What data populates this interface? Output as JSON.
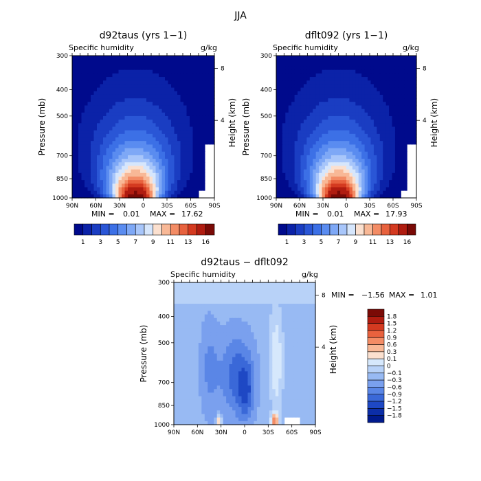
{
  "figure_title": "JJA",
  "chart_data": [
    {
      "type": "heatmap",
      "title": "d92taus (yrs 1−1)",
      "variable": "Specific humidity",
      "units": "g/kg",
      "ylabel": "Pressure (mb)",
      "ylabel_right": "Height (km)",
      "x_ticks": [
        "90N",
        "60N",
        "30N",
        "0",
        "30S",
        "60S",
        "90S"
      ],
      "y_ticks": [
        "300",
        "400",
        "500",
        "700",
        "850",
        "1000"
      ],
      "right_ticks": [
        "8",
        "4"
      ],
      "min_label": "MIN =",
      "min_value": "0.01",
      "max_label": "MAX =",
      "max_value": "17.62",
      "colorbar_labels": [
        "1",
        "3",
        "5",
        "7",
        "9",
        "11",
        "13",
        "16"
      ]
    },
    {
      "type": "heatmap",
      "title": "dflt092 (yrs 1−1)",
      "variable": "Specific humidity",
      "units": "g/kg",
      "ylabel": "Pressure (mb)",
      "ylabel_right": "Height (km)",
      "x_ticks": [
        "90N",
        "60N",
        "30N",
        "0",
        "30S",
        "60S",
        "90S"
      ],
      "y_ticks": [
        "300",
        "400",
        "500",
        "700",
        "850",
        "1000"
      ],
      "right_ticks": [
        "8",
        "4"
      ],
      "min_label": "MIN =",
      "min_value": "0.01",
      "max_label": "MAX =",
      "max_value": "17.93",
      "colorbar_labels": [
        "1",
        "3",
        "5",
        "7",
        "9",
        "11",
        "13",
        "16"
      ]
    },
    {
      "type": "heatmap",
      "title": "d92taus − dflt092",
      "variable": "Specific humidity",
      "units": "g/kg",
      "ylabel": "Pressure (mb)",
      "ylabel_right": "Height (km)",
      "x_ticks": [
        "90N",
        "60N",
        "30N",
        "0",
        "30S",
        "60S",
        "90S"
      ],
      "y_ticks": [
        "300",
        "400",
        "500",
        "700",
        "850",
        "1000"
      ],
      "right_ticks": [
        "8",
        "4"
      ],
      "min_label": "MIN =",
      "min_value": "−1.56",
      "max_label": "MAX =",
      "max_value": "1.01",
      "colorbar_labels": [
        "1.8",
        "1.5",
        "1.2",
        "0.9",
        "0.6",
        "0.3",
        "0.1",
        "0",
        "−0.1",
        "−0.3",
        "−0.6",
        "−0.9",
        "−1.2",
        "−1.5",
        "−1.8"
      ]
    }
  ],
  "colors": {
    "seq": [
      "#000a8c",
      "#0b22a8",
      "#1a3dc2",
      "#2a56d6",
      "#3c70e6",
      "#5a8cf0",
      "#7ea8f6",
      "#a8c6fa",
      "#d6e6fc",
      "#fbe0cf",
      "#f8b896",
      "#f38c65",
      "#e8623e",
      "#d43a20",
      "#b01c10",
      "#7a0a06"
    ],
    "div": [
      "#7a0a06",
      "#b01c10",
      "#d43a20",
      "#e8623e",
      "#f38c65",
      "#f8b896",
      "#fbe0cf",
      "#d6e8fc",
      "#b8d2f8",
      "#98baf3",
      "#7aa0ee",
      "#5a86e6",
      "#3a68d8",
      "#1e48c4",
      "#0c2ea8",
      "#001a8c"
    ]
  }
}
